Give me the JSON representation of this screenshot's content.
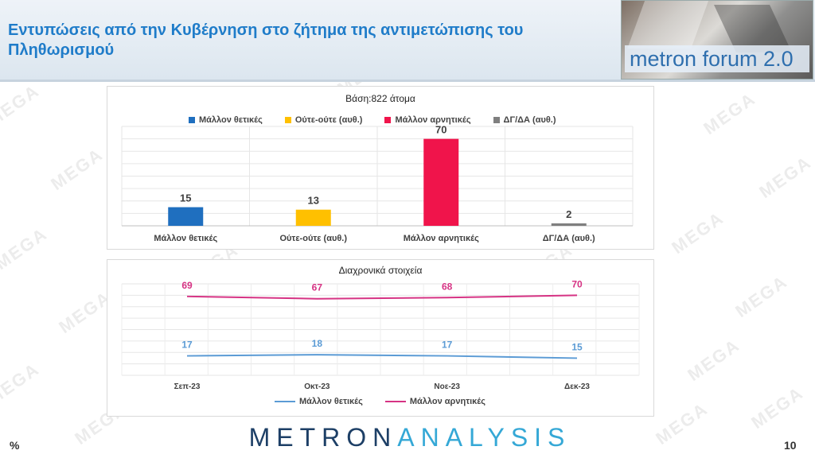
{
  "header": {
    "title": "Εντυπώσεις από την Κυβέρνηση στο ζήτημα της αντιμετώπισης του Πληθωρισμού",
    "logo_text": "metron forum 2.0"
  },
  "watermark": "MEGA",
  "footer": {
    "brand_part1": "METRON",
    "brand_part2": "ANALYSIS",
    "percent_sign": "%",
    "page_number": "10"
  },
  "colors": {
    "positive": "#1f6fbf",
    "neutral": "#ffc000",
    "negative": "#f0144b",
    "dk": "#7f7f7f",
    "line_positive": "#5b9bd5",
    "line_negative": "#d63384",
    "title": "#1f7cc9"
  },
  "chart_data": [
    {
      "type": "bar",
      "title": "Βάση:822 άτομα",
      "categories": [
        "Μάλλον θετικές",
        "Ούτε-ούτε (αυθ.)",
        "Μάλλον αρνητικές",
        "ΔΓ/ΔΑ (αυθ.)"
      ],
      "values": [
        15,
        13,
        70,
        2
      ],
      "value_labels": [
        "15",
        "13",
        "70",
        "2"
      ],
      "legend": [
        "Μάλλον θετικές",
        "Ούτε-ούτε (αυθ.)",
        "Μάλλον αρνητικές",
        "ΔΓ/ΔΑ (αυθ.)"
      ],
      "legend_position": "top",
      "ylim": [
        0,
        80
      ],
      "grid": true
    },
    {
      "type": "line",
      "title": "Διαχρονικά στοιχεία",
      "categories": [
        "Σεπ-23",
        "Οκτ-23",
        "Νοε-23",
        "Δεκ-23"
      ],
      "series": [
        {
          "name": "Μάλλον θετικές",
          "values": [
            17,
            18,
            17,
            15
          ],
          "labels": [
            "17",
            "18",
            "17",
            "15"
          ]
        },
        {
          "name": "Μάλλον αρνητικές",
          "values": [
            69,
            67,
            68,
            70
          ],
          "labels": [
            "69",
            "67",
            "68",
            "70"
          ]
        }
      ],
      "legend_position": "bottom",
      "ylim": [
        0,
        80
      ],
      "grid": true
    }
  ]
}
